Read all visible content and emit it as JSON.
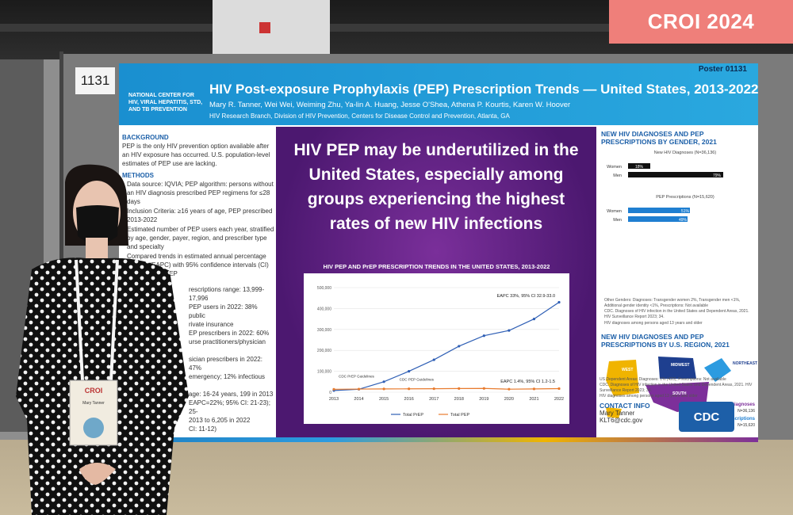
{
  "corner_tag": "CROI 2024",
  "board_number": "1131",
  "poster": {
    "number": "Poster 01131",
    "org": "NATIONAL CENTER FOR HIV, VIRAL HEPATITIS, STD, AND TB PREVENTION",
    "title": "HIV Post-exposure Prophylaxis (PEP) Prescription Trends — United States, 2013-2022",
    "authors": "Mary R. Tanner, Wei Wei, Weiming Zhu, Ya-lin A. Huang, Jesse O'Shea, Athena P. Kourtis, Karen W. Hoover",
    "affiliation": "HIV Research Branch, Division of HIV Prevention, Centers for Disease Control and Prevention, Atlanta, GA",
    "background_head": "BACKGROUND",
    "background_text": "PEP is the only HIV prevention option available after an HIV exposure has occurred. U.S. population-level estimates of PEP use are lacking.",
    "methods_head": "METHODS",
    "methods": [
      "Data source: IQVIA; PEP algorithm: persons without an HIV diagnosis prescribed PEP regimens for ≤28 days",
      "Inclusion Criteria: ≥16 years of age, PEP prescribed 2013-2022",
      "Estimated number of PEP users each year, stratified by age, gender, payer, region, and prescriber type and specialty",
      "Compared trends in estimated annual percentage change (EAPC) with 95% confidence intervals (CI) for PrEP and PEP"
    ],
    "results_lines": [
      "rescriptions range: 13,999-17,996",
      "PEP users in 2022: 38% public",
      "rivate insurance",
      "EP prescribers in 2022: 60%",
      "urse practitioners/physician",
      "",
      "sician prescribers in 2022: 47%",
      "emergency; 12% infectious",
      "",
      "age: 16-24 years, 199 in 2013",
      "EAPC=22%; 95% CI: 21-23); 25-",
      "2013 to 6,205 in 2022",
      "CI: 11-12)"
    ],
    "conclusion_lines": [
      "ilized. Interventions such as",
      "port in electronic health systems,",
      "ulation education, and structural",
      "needed to increase PEP use."
    ],
    "key_message": "HIV PEP may be underutilized in the United States, especially among groups experiencing the highest rates of new HIV infections",
    "right": {
      "gender_head": "NEW HIV DIAGNOSES AND PEP PRESCRIPTIONS BY GENDER, 2021",
      "dx_label": "New HIV Diagnoses (N=36,136)",
      "pep_label": "PEP Prescriptions (N=15,620)",
      "women": "Women",
      "men": "Men",
      "dx_women": "18%",
      "dx_men": "79%",
      "pep_women": "51%",
      "pep_men": "49%",
      "gender_note": "Other Genders: Diagnoses: Transgender women 2%, Transgender men <1%, Additional gender identity <1%, Prescriptions: Not available",
      "gender_source": "CDC. Diagnoses of HIV infection in the United States and Dependent Areas, 2021. HIV Surveillance Report 2023; 34.",
      "gender_age": "HIV diagnoses among persons aged 13 years and older",
      "region_head": "NEW HIV DIAGNOSES AND PEP PRESCRIPTIONS BY U.S. REGION, 2021",
      "west": "WEST",
      "midwest": "MIDWEST",
      "northeast": "NORTHEAST",
      "south": "SOUTH",
      "hiv_dx_label": "HIV Diagnoses",
      "hiv_dx_value": "N=36,136",
      "pep_rx_label": "PEP Prescriptions",
      "pep_rx_value": "N=15,620",
      "region_note": "US Dependent Areas: Diagnoses: 1% (420), Prescriptions: Not available",
      "region_source": "CDC. Diagnoses of HIV infection in the United States and Dependent Areas, 2021. HIV Surveillance Report 2023; 34.",
      "region_age": "HIV diagnoses among persons aged 13 years and older",
      "contact_head": "CONTACT INFO",
      "contact_name": "Mary Tanner",
      "contact_email": "KLT6@cdc.gov",
      "cdc_logo": "CDC"
    }
  },
  "chart_data": {
    "type": "line",
    "title": "HIV PEP AND PrEP PRESCRIPTION TRENDS IN THE UNITED STATES, 2013-2022",
    "x": [
      2013,
      2014,
      2015,
      2016,
      2017,
      2018,
      2019,
      2020,
      2021,
      2022
    ],
    "ylim": [
      0,
      500000
    ],
    "yticks": [
      "0",
      "100,000",
      "200,000",
      "300,000",
      "400,000",
      "500,000"
    ],
    "series": [
      {
        "name": "Total PrEP",
        "color": "#2f5fb5",
        "values": [
          8000,
          14000,
          50000,
          100000,
          155000,
          220000,
          270000,
          295000,
          350000,
          430000
        ]
      },
      {
        "name": "Total PEP",
        "color": "#e87b2e",
        "values": [
          14000,
          15000,
          15500,
          16000,
          16500,
          17500,
          18000,
          14500,
          15500,
          17000
        ]
      }
    ],
    "annotations": [
      {
        "text": "EAPC 33%, 95% CI 32.9-33.0"
      },
      {
        "text": "EAPC 1.4%, 95% CI 1.2-1.5"
      },
      {
        "text": "CDC PrEP Guidelines"
      },
      {
        "text": "CDC PEP Guidelines"
      }
    ]
  },
  "badge": {
    "event": "CROI",
    "name": "Mary Tanner"
  }
}
